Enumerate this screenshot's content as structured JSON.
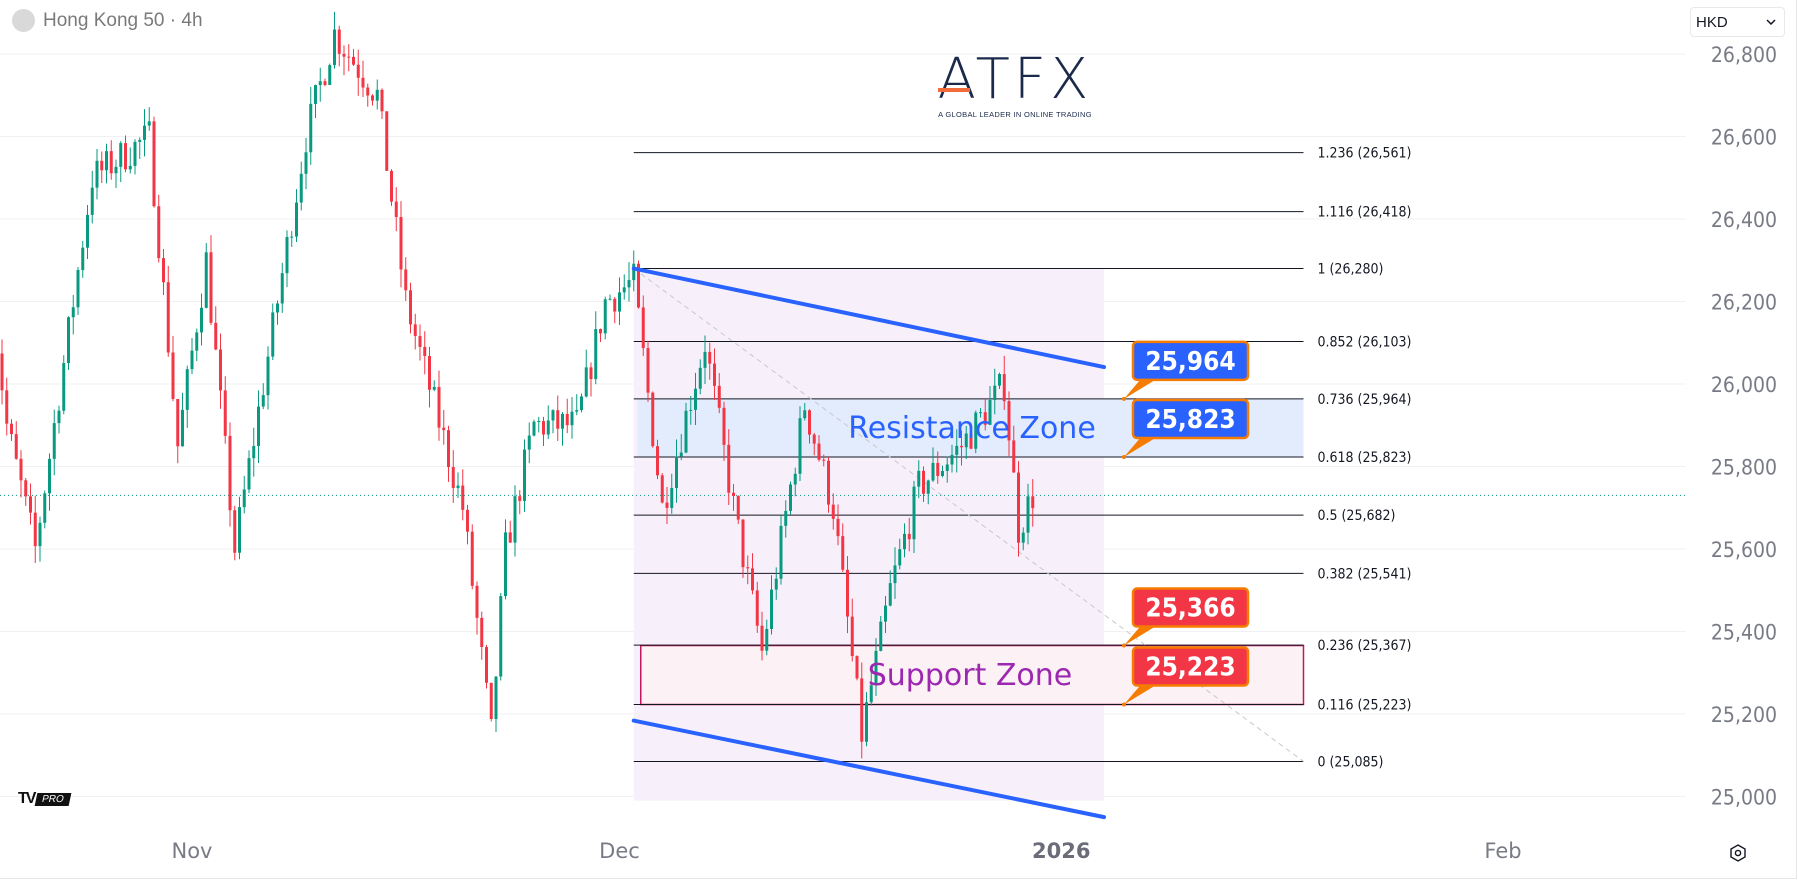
{
  "header": {
    "symbol_title": "Hong Kong 50 · 4h",
    "currency_label": "HKD"
  },
  "logo": {
    "brand": "ATFX",
    "tagline": "A GLOBAL LEADER IN ONLINE TRADING",
    "platform_mark": "TV",
    "platform_badge": "PRO"
  },
  "icons": {
    "symbol": "circle-icon",
    "currency": "chevron-down-icon",
    "settings": "settings-icon"
  },
  "chart_data": {
    "type": "candlestick",
    "title": "Hong Kong 50 · 4h",
    "interval": "4h",
    "ylim": [
      24900,
      26950
    ],
    "y_ticks": [
      25000,
      25200,
      25400,
      25600,
      25800,
      26000,
      26200,
      26400,
      26600,
      26800
    ],
    "y_tick_labels": [
      "25,000",
      "25,200",
      "25,400",
      "25,600",
      "25,800",
      "26,000",
      "26,200",
      "26,400",
      "26,600",
      "26,800"
    ],
    "x_ticks": [
      {
        "date": "2025-11-01",
        "label": "Nov",
        "bold": false
      },
      {
        "date": "2025-12-01",
        "label": "Dec",
        "bold": false
      },
      {
        "date": "2026-01-01",
        "label": "2026",
        "bold": true
      },
      {
        "date": "2026-02-01",
        "label": "Feb",
        "bold": false
      }
    ],
    "x_range": [
      "2025-10-18",
      "2026-02-14"
    ],
    "grid": {
      "horizontal": true,
      "vertical": false
    },
    "colors": {
      "up": "#089981",
      "down": "#f23645",
      "channel": "#2962ff",
      "fib_line": "#131722",
      "resistance_fill": "#e3ecfd",
      "resistance_text": "#2962ff",
      "support_border": "#c2185b",
      "support_text": "#9c27b0",
      "zone_shade": "#f7f0fb",
      "callout_blue": "#2962ff",
      "callout_red": "#f23645",
      "callout_border": "#f57c00",
      "last_price": "#089981"
    },
    "last_price": 25730,
    "price_path": [
      [
        "2025-10-18",
        26200
      ],
      [
        "2025-10-19",
        25900
      ],
      [
        "2025-10-21",
        25600
      ],
      [
        "2025-10-25",
        26500
      ],
      [
        "2025-10-29",
        26600
      ],
      [
        "2025-10-31",
        25850
      ],
      [
        "2025-11-02",
        26300
      ],
      [
        "2025-11-04",
        25600
      ],
      [
        "2025-11-07",
        26200
      ],
      [
        "2025-11-09",
        26600
      ],
      [
        "2025-11-11",
        26850
      ],
      [
        "2025-11-14",
        26700
      ],
      [
        "2025-11-16",
        26200
      ],
      [
        "2025-11-20",
        25700
      ],
      [
        "2025-11-22",
        25150
      ],
      [
        "2025-11-23",
        25600
      ],
      [
        "2025-11-25",
        25900
      ],
      [
        "2025-11-28",
        25900
      ],
      [
        "2025-11-30",
        26200
      ],
      [
        "2025-12-02",
        26250
      ],
      [
        "2025-12-04",
        25700
      ],
      [
        "2025-12-07",
        26100
      ],
      [
        "2025-12-09",
        25700
      ],
      [
        "2025-12-11",
        25350
      ],
      [
        "2025-12-14",
        25950
      ],
      [
        "2025-12-16",
        25700
      ],
      [
        "2025-12-18",
        25150
      ],
      [
        "2025-12-20",
        25500
      ],
      [
        "2025-12-22",
        25750
      ],
      [
        "2025-12-25",
        25850
      ],
      [
        "2025-12-28",
        26000
      ],
      [
        "2025-12-29",
        25650
      ],
      [
        "2025-12-30",
        25730
      ]
    ],
    "fibonacci": {
      "start": "2025-12-02",
      "end": "2026-01-18",
      "levels": [
        {
          "ratio": "1.236",
          "price": 26561,
          "label": "1.236 (26,561)"
        },
        {
          "ratio": "1.116",
          "price": 26418,
          "label": "1.116 (26,418)"
        },
        {
          "ratio": "1",
          "price": 26280,
          "label": "1 (26,280)"
        },
        {
          "ratio": "0.852",
          "price": 26103,
          "label": "0.852 (26,103)"
        },
        {
          "ratio": "0.736",
          "price": 25964,
          "label": "0.736 (25,964)"
        },
        {
          "ratio": "0.618",
          "price": 25823,
          "label": "0.618 (25,823)"
        },
        {
          "ratio": "0.5",
          "price": 25682,
          "label": "0.5 (25,682)"
        },
        {
          "ratio": "0.382",
          "price": 25541,
          "label": "0.382 (25,541)"
        },
        {
          "ratio": "0.236",
          "price": 25367,
          "label": "0.236 (25,367)"
        },
        {
          "ratio": "0.116",
          "price": 25223,
          "label": "0.116 (25,223)"
        },
        {
          "ratio": "0",
          "price": 25085,
          "label": "0 (25,085)"
        }
      ],
      "trend_line": [
        [
          "2025-12-02",
          26280
        ],
        [
          "2026-01-18",
          25085
        ]
      ]
    },
    "shaded_range": {
      "start": "2025-12-02",
      "end": "2026-01-04",
      "top": 26280,
      "bottom": 24990
    },
    "channel": {
      "upper": [
        [
          "2025-12-02",
          26280
        ],
        [
          "2026-01-04",
          26041
        ]
      ],
      "lower": [
        [
          "2025-12-02",
          25184
        ],
        [
          "2026-01-04",
          24950
        ]
      ]
    },
    "zones": [
      {
        "name": "resistance",
        "label": "Resistance Zone",
        "top": 25964,
        "bottom": 25823,
        "start": "2025-12-02",
        "end": "2026-01-18"
      },
      {
        "name": "support",
        "label": "Support Zone",
        "top": 25366,
        "bottom": 25223,
        "start": "2025-12-02",
        "end": "2026-01-18"
      }
    ],
    "callouts": [
      {
        "value": 25964,
        "text": "25,964",
        "color": "blue"
      },
      {
        "value": 25823,
        "text": "25,823",
        "color": "blue"
      },
      {
        "value": 25366,
        "text": "25,366",
        "color": "red"
      },
      {
        "value": 25223,
        "text": "25,223",
        "color": "red"
      }
    ]
  }
}
